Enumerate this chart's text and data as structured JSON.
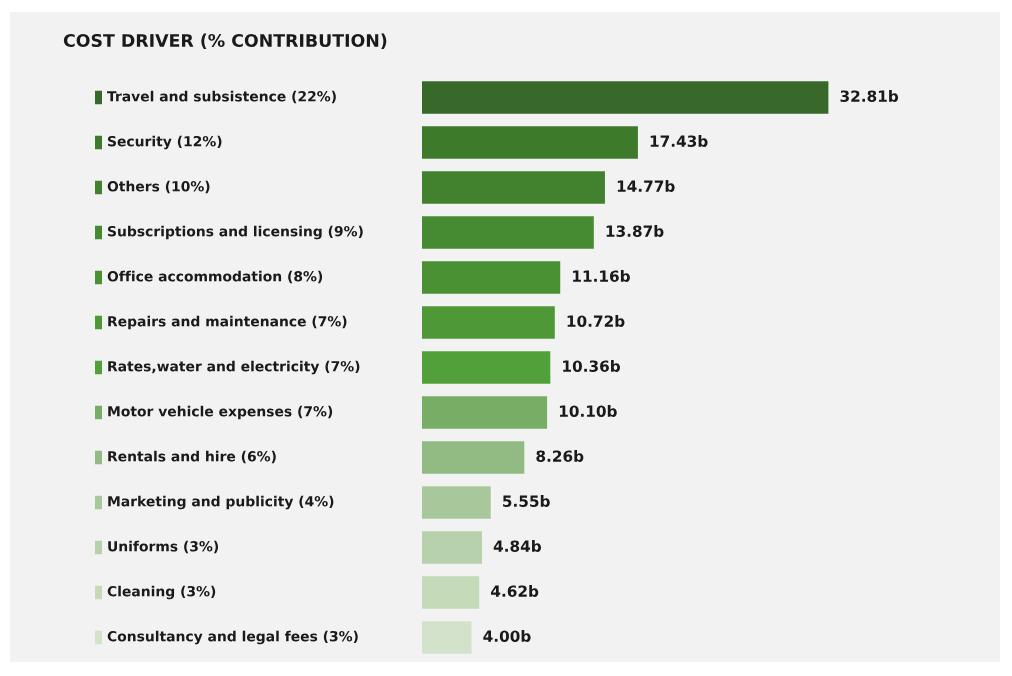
{
  "chart_data": {
    "type": "bar",
    "orientation": "horizontal",
    "title": "COST DRIVER (% CONTRIBUTION)",
    "categories": [
      "Travel and subsistence (22%)",
      "Security (12%)",
      "Others (10%)",
      "Subscriptions and licensing (9%)",
      "Office accommodation (8%)",
      "Repairs and maintenance (7%)",
      "Rates,water and electricity (7%)",
      "Motor vehicle expenses (7%)",
      "Rentals and hire (6%)",
      "Marketing and publicity (4%)",
      "Uniforms (3%)",
      "Cleaning (3%)",
      "Consultancy and legal fees (3%)"
    ],
    "values": [
      32.81,
      17.43,
      14.77,
      13.87,
      11.16,
      10.72,
      10.36,
      10.1,
      8.26,
      5.55,
      4.84,
      4.62,
      4.0
    ],
    "value_labels": [
      "32.81b",
      "17.43b",
      "14.77b",
      "13.87b",
      "11.16b",
      "10.72b",
      "10.36b",
      "10.10b",
      "8.26b",
      "5.55b",
      "4.84b",
      "4.62b",
      "4.00b"
    ],
    "colors": [
      "#38692a",
      "#3d7a2a",
      "#42822e",
      "#468b32",
      "#4a9134",
      "#4e9837",
      "#52a03a",
      "#78ad66",
      "#91bb82",
      "#a8c89c",
      "#b6d1ab",
      "#c4dab9",
      "#d3e3cb"
    ]
  }
}
